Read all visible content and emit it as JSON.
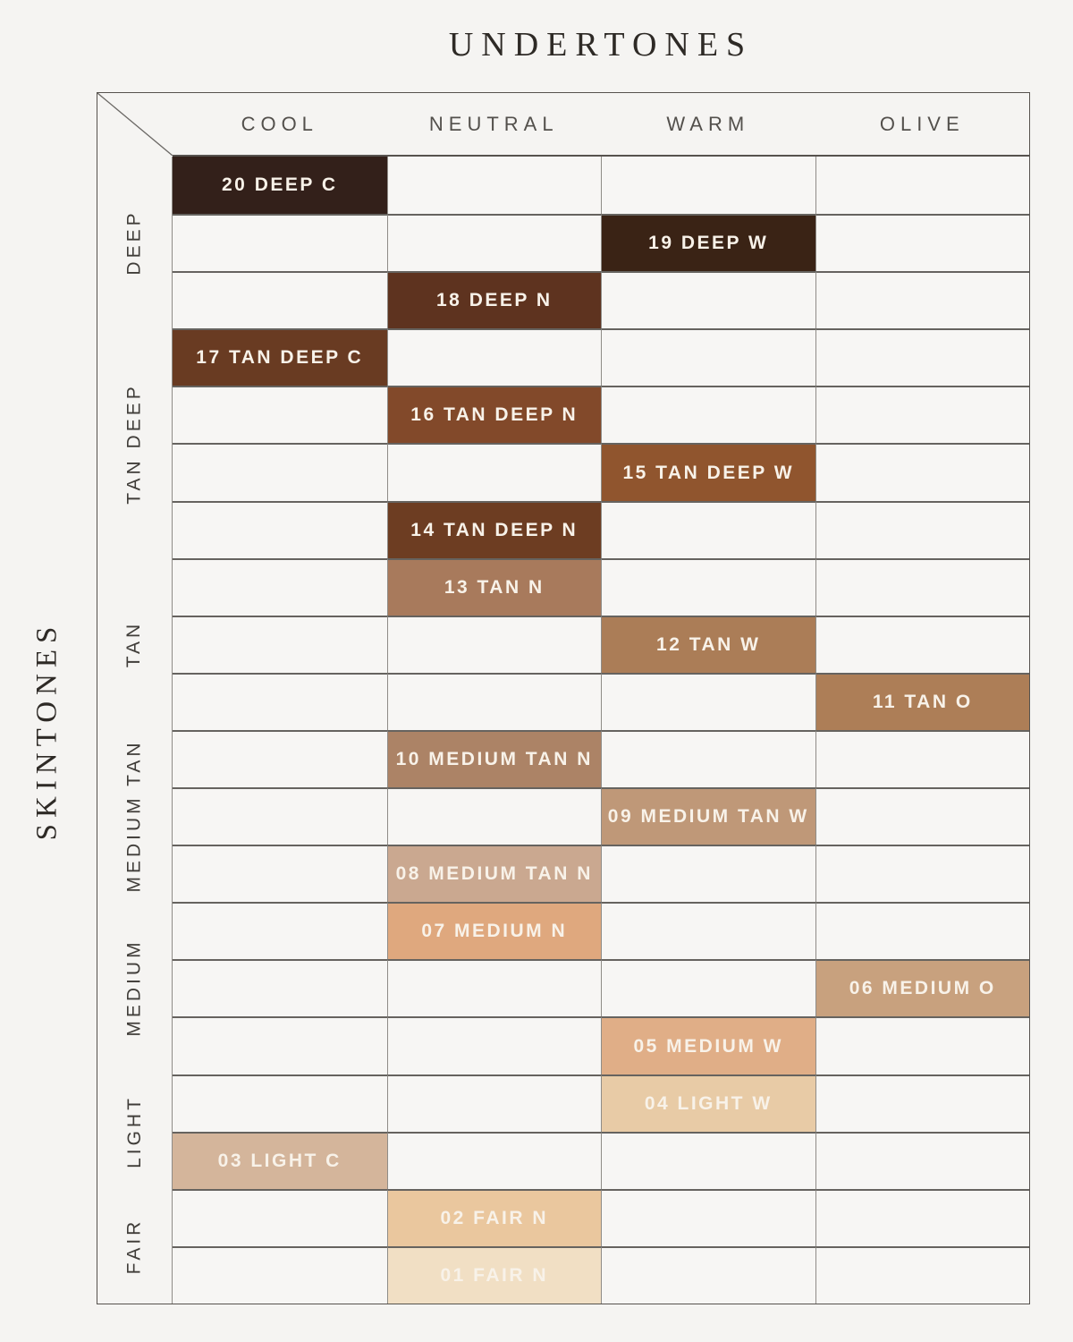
{
  "title": "UNDERTONES",
  "side_title": "SKINTONES",
  "colors": {
    "page_bg": "#f5f4f2",
    "cell_bg": "#f7f6f4",
    "outer_border": "#56524e",
    "row_line": "#66635f",
    "col_line": "#8f8c87",
    "header_text": "#53504c",
    "group_label_text": "#403d39",
    "title_text": "#2e2a26",
    "shade_label_text": "#f8f2e9"
  },
  "chart_data": {
    "type": "table",
    "title": "UNDERTONES",
    "row_axis_label": "SKINTONES",
    "columns": [
      "COOL",
      "NEUTRAL",
      "WARM",
      "OLIVE"
    ],
    "row_groups": [
      {
        "label": "DEEP",
        "rows": 3
      },
      {
        "label": "TAN DEEP",
        "rows": 4
      },
      {
        "label": "TAN",
        "rows": 3
      },
      {
        "label": "MEDIUM TAN",
        "rows": 3
      },
      {
        "label": "MEDIUM",
        "rows": 3
      },
      {
        "label": "LIGHT",
        "rows": 2
      },
      {
        "label": "FAIR",
        "rows": 2
      }
    ],
    "shades": [
      {
        "row": 1,
        "skintone": "DEEP",
        "undertone": "COOL",
        "label": "20 DEEP C",
        "color": "#33201a"
      },
      {
        "row": 2,
        "skintone": "DEEP",
        "undertone": "WARM",
        "label": "19 DEEP W",
        "color": "#3a2315"
      },
      {
        "row": 3,
        "skintone": "DEEP",
        "undertone": "NEUTRAL",
        "label": "18 DEEP N",
        "color": "#5e331f"
      },
      {
        "row": 4,
        "skintone": "TAN DEEP",
        "undertone": "COOL",
        "label": "17 TAN DEEP C",
        "color": "#693b22"
      },
      {
        "row": 5,
        "skintone": "TAN DEEP",
        "undertone": "NEUTRAL",
        "label": "16 TAN DEEP N",
        "color": "#82492a"
      },
      {
        "row": 6,
        "skintone": "TAN DEEP",
        "undertone": "WARM",
        "label": "15 TAN DEEP W",
        "color": "#90552e"
      },
      {
        "row": 7,
        "skintone": "TAN DEEP",
        "undertone": "NEUTRAL",
        "label": "14 TAN DEEP N",
        "color": "#6d3d22"
      },
      {
        "row": 8,
        "skintone": "TAN",
        "undertone": "NEUTRAL",
        "label": "13 TAN N",
        "color": "#a87a5c"
      },
      {
        "row": 9,
        "skintone": "TAN",
        "undertone": "WARM",
        "label": "12 TAN W",
        "color": "#ab7d57"
      },
      {
        "row": 10,
        "skintone": "TAN",
        "undertone": "OLIVE",
        "label": "11 TAN O",
        "color": "#ad7e57"
      },
      {
        "row": 11,
        "skintone": "MEDIUM TAN",
        "undertone": "NEUTRAL",
        "label": "10 MEDIUM TAN N",
        "color": "#ac8366"
      },
      {
        "row": 12,
        "skintone": "MEDIUM TAN",
        "undertone": "WARM",
        "label": "09 MEDIUM TAN W",
        "color": "#bf9878"
      },
      {
        "row": 13,
        "skintone": "MEDIUM TAN",
        "undertone": "NEUTRAL",
        "label": "08 MEDIUM TAN N",
        "color": "#caa890"
      },
      {
        "row": 14,
        "skintone": "MEDIUM",
        "undertone": "NEUTRAL",
        "label": "07 MEDIUM N",
        "color": "#dfa87e"
      },
      {
        "row": 15,
        "skintone": "MEDIUM",
        "undertone": "OLIVE",
        "label": "06 MEDIUM O",
        "color": "#c8a17e"
      },
      {
        "row": 16,
        "skintone": "MEDIUM",
        "undertone": "WARM",
        "label": "05 MEDIUM W",
        "color": "#e0ae87"
      },
      {
        "row": 17,
        "skintone": "LIGHT",
        "undertone": "WARM",
        "label": "04 LIGHT W",
        "color": "#e8cba6"
      },
      {
        "row": 18,
        "skintone": "LIGHT",
        "undertone": "COOL",
        "label": "03 LIGHT C",
        "color": "#d4b59b"
      },
      {
        "row": 19,
        "skintone": "FAIR",
        "undertone": "NEUTRAL",
        "label": "02 FAIR N",
        "color": "#eac79e"
      },
      {
        "row": 20,
        "skintone": "FAIR",
        "undertone": "NEUTRAL",
        "label": "01 FAIR N",
        "color": "#f1dfc4"
      }
    ]
  }
}
